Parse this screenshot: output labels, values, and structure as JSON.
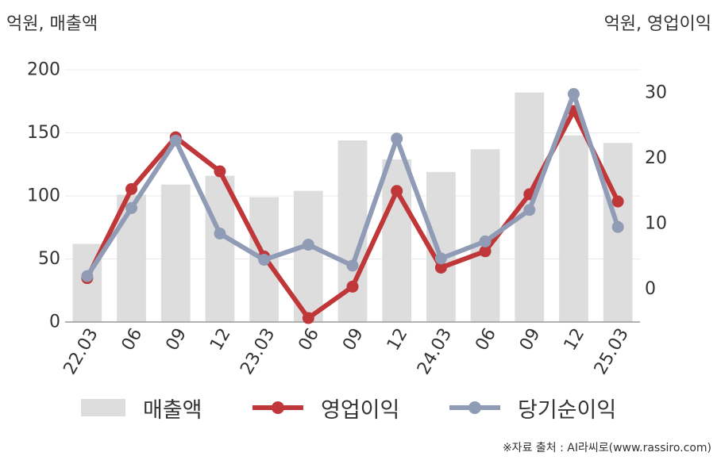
{
  "units": {
    "left": "억원, 매출액",
    "right": "억원, 영업이익"
  },
  "source": "※자료 출처 : AI라씨로(www.rassiro.com)",
  "chart_data": {
    "type": "bar",
    "categories": [
      "22.03",
      "06",
      "09",
      "12",
      "23.03",
      "06",
      "09",
      "12",
      "24.03",
      "06",
      "09",
      "12",
      "25.03"
    ],
    "y_left": {
      "label": "억원, 매출액",
      "lim": [
        0,
        200
      ],
      "ticks": [
        0,
        50,
        100,
        150,
        200
      ]
    },
    "y_right": {
      "label": "억원, 영업이익",
      "lim": [
        -5,
        33.5
      ],
      "ticks": [
        0,
        10,
        20,
        30
      ]
    },
    "grid": true,
    "legend_position": "bottom",
    "series": [
      {
        "name": "매출액",
        "type": "bar",
        "axis": "left",
        "color": "#dddddd",
        "values": [
          62,
          101,
          109,
          116,
          99,
          104,
          144,
          129,
          119,
          137,
          182,
          148,
          142
        ]
      },
      {
        "name": "영업이익",
        "type": "line",
        "axis": "right",
        "color": "#c0373a",
        "values": [
          1.7,
          15.3,
          23.2,
          18.0,
          5.0,
          -4.4,
          0.4,
          15.0,
          3.3,
          5.8,
          14.5,
          27.2,
          13.4
        ]
      },
      {
        "name": "당기순이익",
        "type": "line",
        "axis": "right",
        "color": "#909bb5",
        "values": [
          2.0,
          12.4,
          22.7,
          8.5,
          4.5,
          6.8,
          3.6,
          23.0,
          4.7,
          7.3,
          12.1,
          29.8,
          9.5
        ]
      }
    ]
  }
}
